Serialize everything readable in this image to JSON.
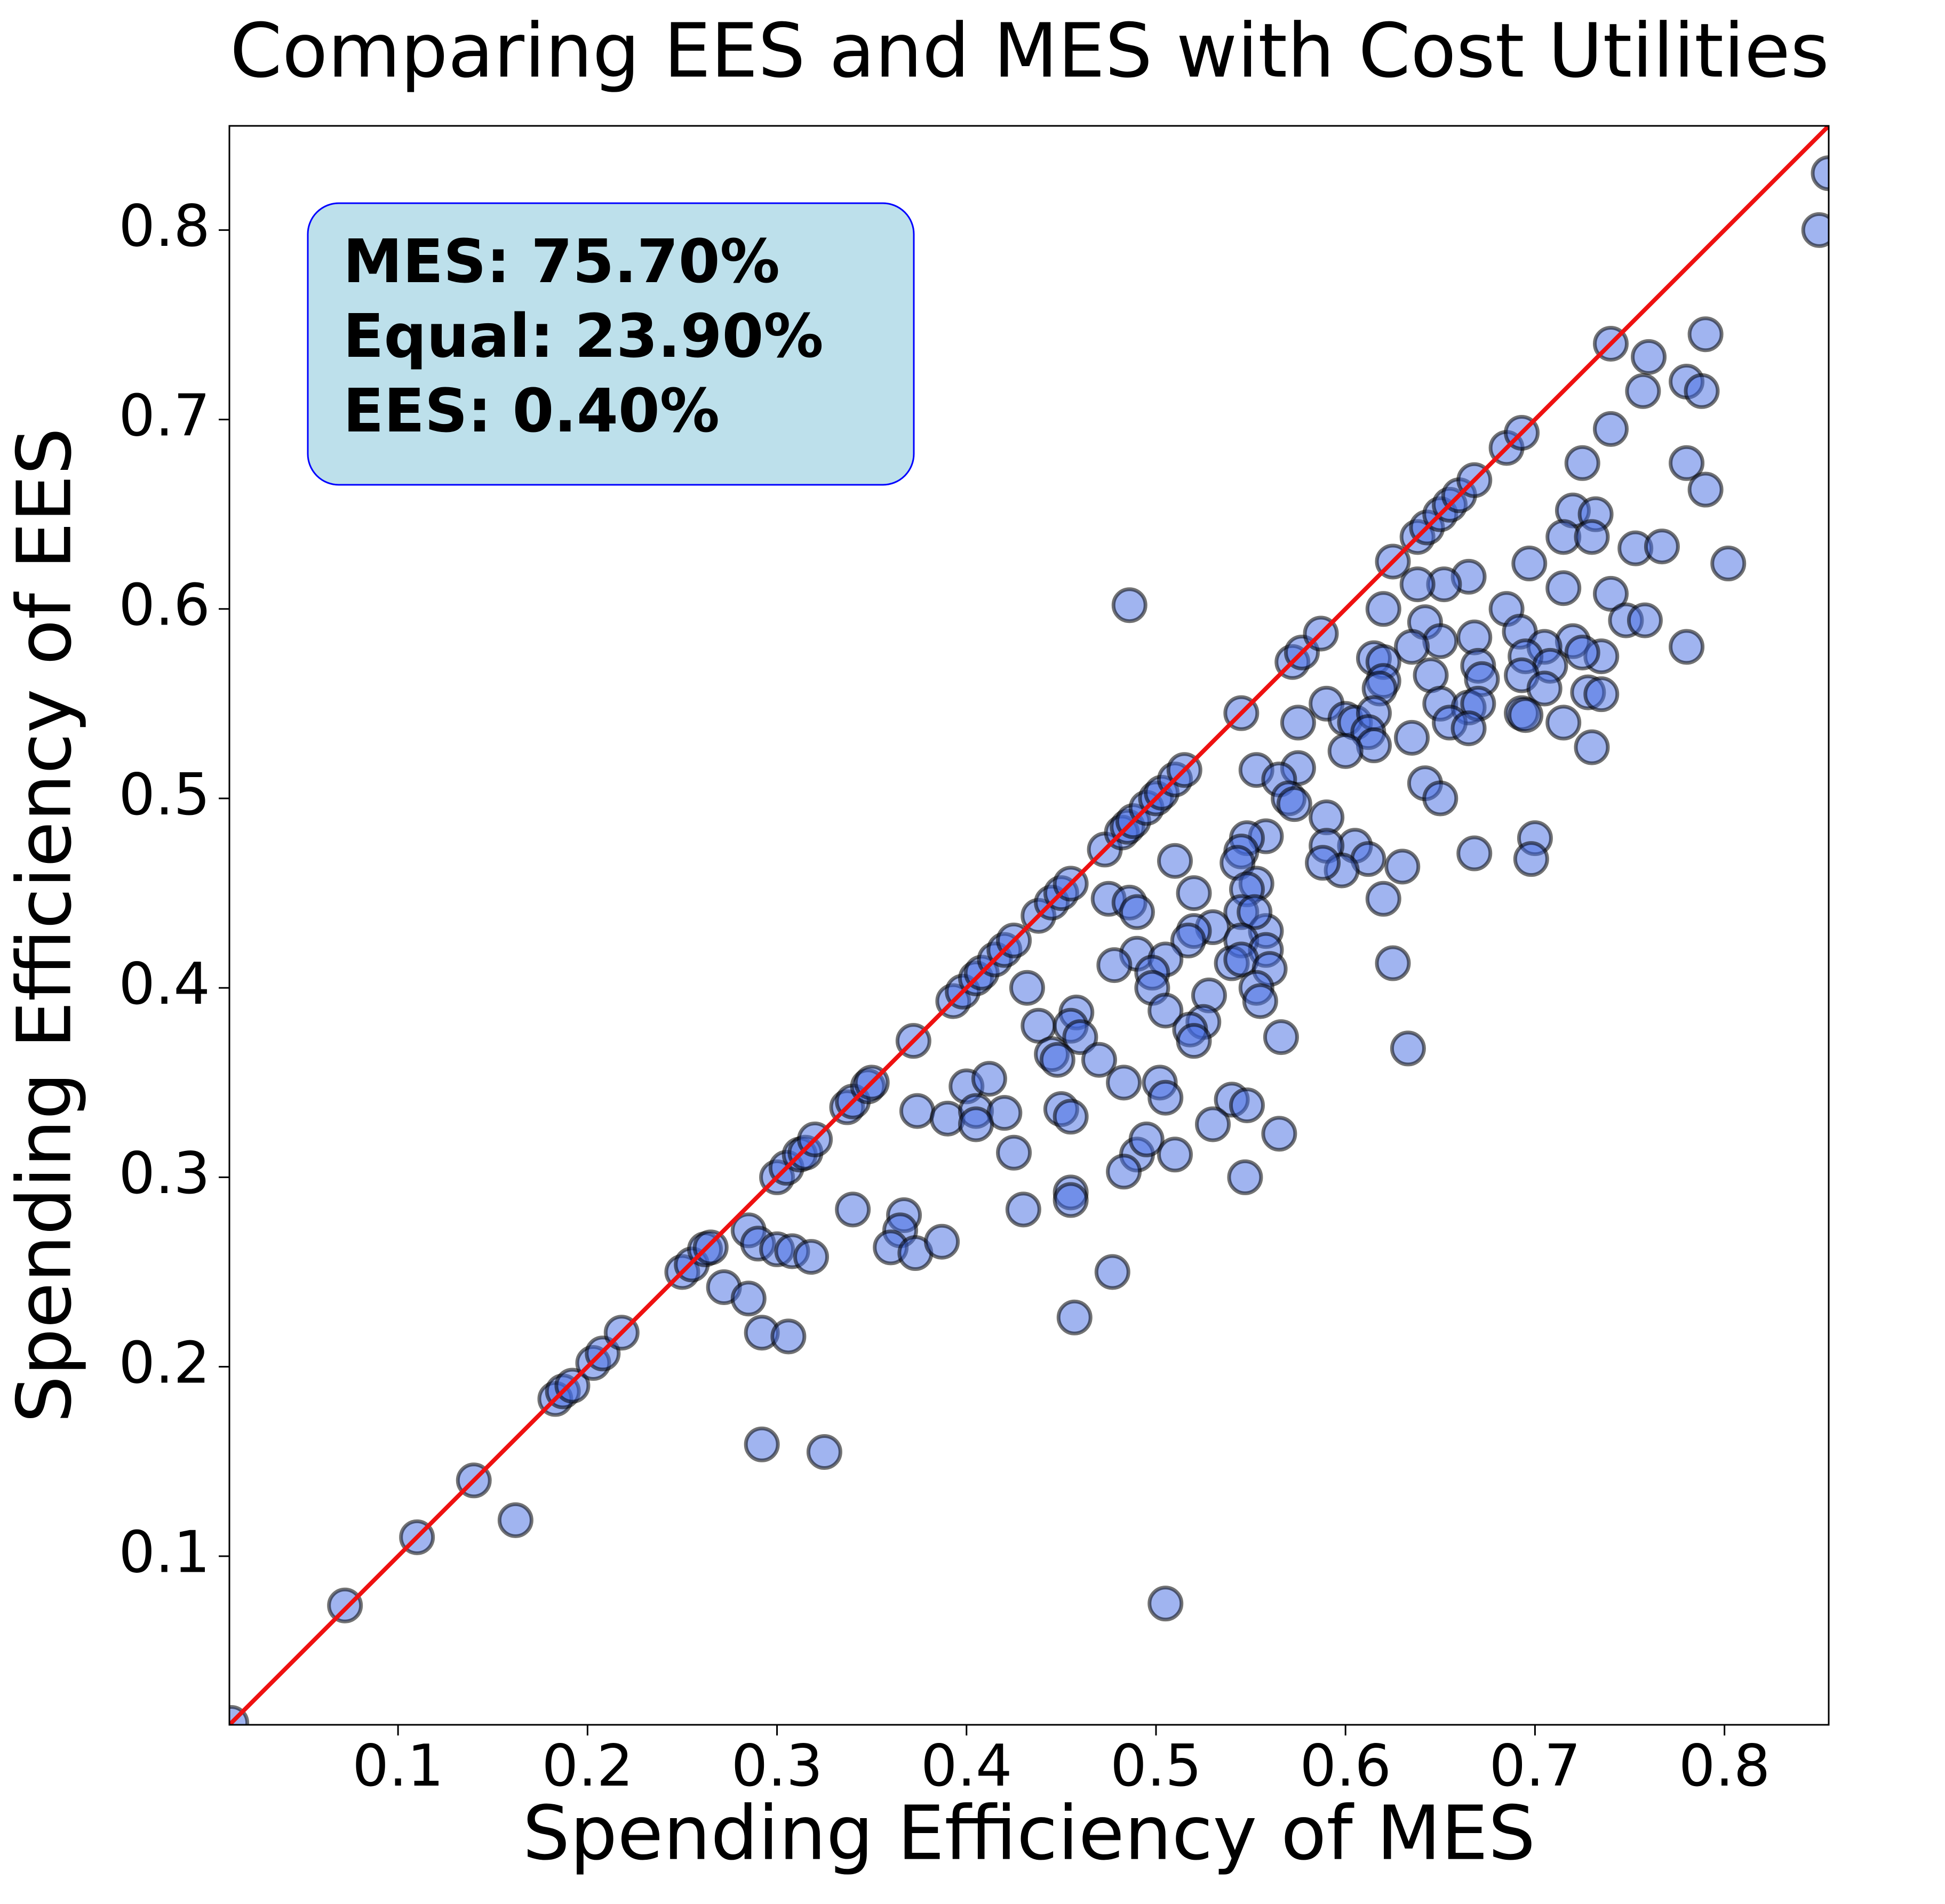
{
  "chart_data": {
    "type": "scatter",
    "title": "Comparing EES and MES with Cost Utilities",
    "xlabel": "Spending Efficiency of MES",
    "ylabel": "Spending Efficiency of EES",
    "annotation": [
      "MES: 75.70%",
      "Equal: 23.90%",
      "EES: 0.40%"
    ],
    "color": "#4169e1",
    "edgecolor": "#000000",
    "diagonal_color": "#ee1111",
    "xlim": [
      0.011,
      0.855
    ],
    "ylim": [
      0.011,
      0.855
    ],
    "xticks": [
      0.1,
      0.2,
      0.3,
      0.4,
      0.5,
      0.6,
      0.7,
      0.8
    ],
    "yticks": [
      0.1,
      0.2,
      0.3,
      0.4,
      0.5,
      0.6,
      0.7,
      0.8
    ],
    "x": [
      0.012,
      0.072,
      0.11,
      0.14,
      0.183,
      0.187,
      0.192,
      0.203,
      0.208,
      0.218,
      0.25,
      0.255,
      0.262,
      0.265,
      0.3,
      0.305,
      0.312,
      0.315,
      0.32,
      0.337,
      0.34,
      0.348,
      0.35,
      0.372,
      0.393,
      0.398,
      0.405,
      0.408,
      0.415,
      0.42,
      0.425,
      0.438,
      0.445,
      0.45,
      0.455,
      0.473,
      0.482,
      0.485,
      0.488,
      0.495,
      0.5,
      0.503,
      0.51,
      0.515,
      0.545,
      0.572,
      0.577,
      0.587,
      0.625,
      0.638,
      0.643,
      0.65,
      0.655,
      0.66,
      0.668,
      0.685,
      0.693,
      0.74,
      0.855,
      0.85,
      0.79,
      0.76,
      0.78,
      0.757,
      0.788,
      0.74,
      0.725,
      0.78,
      0.79,
      0.72,
      0.732,
      0.715,
      0.73,
      0.753,
      0.767,
      0.802,
      0.697,
      0.665,
      0.652,
      0.638,
      0.715,
      0.74,
      0.642,
      0.685,
      0.748,
      0.758,
      0.692,
      0.65,
      0.668,
      0.62,
      0.635,
      0.72,
      0.705,
      0.78,
      0.735,
      0.695,
      0.615,
      0.62,
      0.725,
      0.67,
      0.708,
      0.62,
      0.645,
      0.693,
      0.672,
      0.705,
      0.618,
      0.728,
      0.735,
      0.65,
      0.59,
      0.665,
      0.67,
      0.6,
      0.605,
      0.615,
      0.693,
      0.695,
      0.655,
      0.665,
      0.612,
      0.575,
      0.615,
      0.635,
      0.6,
      0.73,
      0.715,
      0.553,
      0.575,
      0.642,
      0.565,
      0.57,
      0.573,
      0.65,
      0.558,
      0.548,
      0.59,
      0.7,
      0.668,
      0.698,
      0.605,
      0.59,
      0.51,
      0.545,
      0.543,
      0.612,
      0.598,
      0.588,
      0.63,
      0.553,
      0.548,
      0.52,
      0.475,
      0.486,
      0.49,
      0.62,
      0.545,
      0.558,
      0.552,
      0.53,
      0.52,
      0.545,
      0.558,
      0.517,
      0.49,
      0.505,
      0.54,
      0.545,
      0.56,
      0.478,
      0.625,
      0.498,
      0.498,
      0.553,
      0.528,
      0.555,
      0.505,
      0.432,
      0.458,
      0.438,
      0.455,
      0.46,
      0.525,
      0.518,
      0.52,
      0.566,
      0.445,
      0.448,
      0.47,
      0.633,
      0.4,
      0.412,
      0.483,
      0.502,
      0.374,
      0.39,
      0.405,
      0.42,
      0.405,
      0.45,
      0.455,
      0.505,
      0.54,
      0.548,
      0.53,
      0.565,
      0.425,
      0.49,
      0.495,
      0.51,
      0.483,
      0.547,
      0.455,
      0.455,
      0.43,
      0.34,
      0.367,
      0.365,
      0.285,
      0.29,
      0.3,
      0.308,
      0.318,
      0.36,
      0.373,
      0.387,
      0.272,
      0.285,
      0.477,
      0.292,
      0.306,
      0.457,
      0.292,
      0.325,
      0.162,
      0.505,
      0.486
    ],
    "values": [
      0.012,
      0.074,
      0.11,
      0.14,
      0.183,
      0.187,
      0.19,
      0.202,
      0.207,
      0.218,
      0.25,
      0.254,
      0.262,
      0.263,
      0.3,
      0.305,
      0.312,
      0.313,
      0.32,
      0.337,
      0.34,
      0.348,
      0.35,
      0.372,
      0.393,
      0.398,
      0.405,
      0.408,
      0.415,
      0.42,
      0.425,
      0.438,
      0.445,
      0.45,
      0.455,
      0.473,
      0.482,
      0.485,
      0.488,
      0.495,
      0.5,
      0.503,
      0.51,
      0.515,
      0.545,
      0.572,
      0.577,
      0.587,
      0.625,
      0.638,
      0.643,
      0.65,
      0.655,
      0.66,
      0.668,
      0.685,
      0.693,
      0.74,
      0.83,
      0.8,
      0.745,
      0.733,
      0.72,
      0.715,
      0.715,
      0.695,
      0.677,
      0.677,
      0.663,
      0.652,
      0.65,
      0.638,
      0.638,
      0.632,
      0.633,
      0.624,
      0.624,
      0.617,
      0.613,
      0.613,
      0.611,
      0.608,
      0.593,
      0.6,
      0.594,
      0.594,
      0.588,
      0.583,
      0.585,
      0.6,
      0.58,
      0.583,
      0.58,
      0.58,
      0.575,
      0.575,
      0.574,
      0.572,
      0.577,
      0.57,
      0.57,
      0.562,
      0.565,
      0.565,
      0.563,
      0.558,
      0.558,
      0.556,
      0.555,
      0.55,
      0.55,
      0.548,
      0.55,
      0.542,
      0.54,
      0.545,
      0.545,
      0.544,
      0.54,
      0.537,
      0.535,
      0.54,
      0.528,
      0.532,
      0.525,
      0.527,
      0.54,
      0.515,
      0.516,
      0.508,
      0.51,
      0.5,
      0.497,
      0.5,
      0.48,
      0.479,
      0.49,
      0.479,
      0.471,
      0.468,
      0.475,
      0.475,
      0.467,
      0.472,
      0.466,
      0.468,
      0.462,
      0.466,
      0.464,
      0.455,
      0.452,
      0.45,
      0.447,
      0.445,
      0.44,
      0.447,
      0.44,
      0.43,
      0.44,
      0.432,
      0.43,
      0.425,
      0.42,
      0.425,
      0.418,
      0.415,
      0.413,
      0.415,
      0.41,
      0.412,
      0.413,
      0.408,
      0.4,
      0.4,
      0.396,
      0.393,
      0.388,
      0.4,
      0.387,
      0.38,
      0.38,
      0.374,
      0.382,
      0.378,
      0.372,
      0.374,
      0.365,
      0.362,
      0.362,
      0.368,
      0.348,
      0.352,
      0.35,
      0.35,
      0.335,
      0.331,
      0.335,
      0.334,
      0.328,
      0.336,
      0.332,
      0.342,
      0.341,
      0.338,
      0.328,
      0.323,
      0.313,
      0.312,
      0.32,
      0.312,
      0.303,
      0.3,
      0.292,
      0.288,
      0.283,
      0.283,
      0.28,
      0.272,
      0.272,
      0.265,
      0.262,
      0.261,
      0.258,
      0.263,
      0.26,
      0.266,
      0.242,
      0.236,
      0.25,
      0.218,
      0.216,
      0.226,
      0.159,
      0.155,
      0.119,
      0.075,
      0.602
    ]
  }
}
